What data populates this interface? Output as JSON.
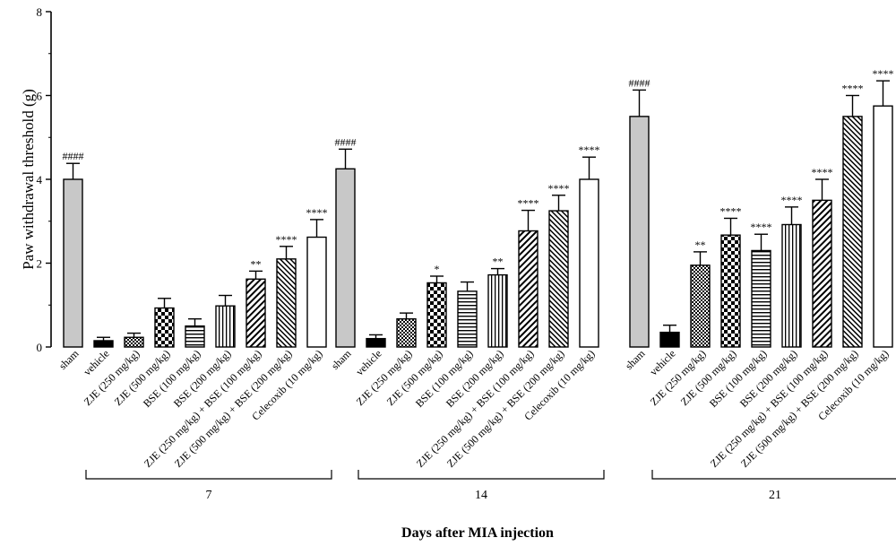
{
  "chart_data": {
    "type": "bar",
    "ylabel": "Paw withdrawal threshold (g)",
    "xlabel": "Days after MIA injection",
    "ylim": [
      0,
      8
    ],
    "yticks": [
      0,
      2,
      4,
      6,
      8
    ],
    "categories": [
      "sham",
      "vehicle",
      "ZJE (250 mg/kg)",
      "ZJE (500 mg/kg)",
      "BSE (100 mg/kg)",
      "BSE (200 mg/kg)",
      "ZJE (250 mg/kg) + BSE (100 mg/kg)",
      "ZJE (500 mg/kg) + BSE (200 mg/kg)",
      "Celecoxib (10 mg/kg)"
    ],
    "bar_fills": [
      "gray",
      "black",
      "small-check",
      "large-check",
      "horizontal-lines",
      "vertical-lines",
      "diagonal-left",
      "diagonal-right",
      "white"
    ],
    "groups": [
      {
        "label": "7",
        "values": [
          4.0,
          0.15,
          0.23,
          0.93,
          0.5,
          0.98,
          1.62,
          2.1,
          2.62
        ],
        "errors": [
          0.38,
          0.08,
          0.1,
          0.23,
          0.17,
          0.25,
          0.19,
          0.3,
          0.42
        ],
        "sig": [
          "####",
          "",
          "",
          "",
          "",
          "",
          "**",
          "****",
          "****"
        ]
      },
      {
        "label": "14",
        "values": [
          4.25,
          0.2,
          0.67,
          1.53,
          1.33,
          1.72,
          2.77,
          3.25,
          4.0
        ],
        "errors": [
          0.47,
          0.09,
          0.14,
          0.16,
          0.22,
          0.15,
          0.49,
          0.37,
          0.53
        ],
        "sig": [
          "####",
          "",
          "",
          "*",
          "",
          "**",
          "****",
          "****",
          "****"
        ]
      },
      {
        "label": "21",
        "values": [
          5.5,
          0.35,
          1.95,
          2.67,
          2.3,
          2.92,
          3.5,
          5.5,
          5.75
        ],
        "errors": [
          0.63,
          0.17,
          0.32,
          0.4,
          0.39,
          0.42,
          0.5,
          0.5,
          0.6
        ],
        "sig": [
          "####",
          "",
          "**",
          "****",
          "****",
          "****",
          "****",
          "****",
          "****"
        ]
      }
    ]
  }
}
